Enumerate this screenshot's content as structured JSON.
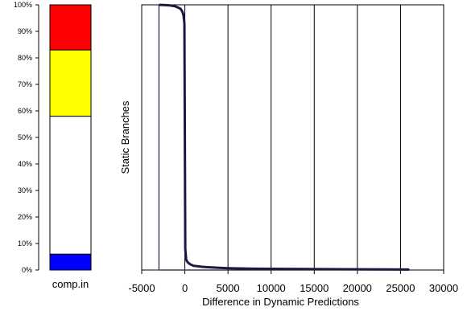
{
  "chart_data": [
    {
      "type": "bar",
      "stacked": true,
      "categories": [
        "comp.in"
      ],
      "series": [
        {
          "color": "#0000ff",
          "values": [
            6
          ]
        },
        {
          "color": "#ffffff",
          "values": [
            52
          ]
        },
        {
          "color": "#ffff00",
          "values": [
            25
          ]
        },
        {
          "color": "#ff0000",
          "values": [
            17
          ]
        }
      ],
      "ylim": [
        0,
        100
      ],
      "yticks": [
        "0%",
        "10%",
        "20%",
        "30%",
        "40%",
        "50%",
        "60%",
        "70%",
        "80%",
        "90%",
        "100%"
      ]
    },
    {
      "type": "area",
      "ylabel": "Static Branches",
      "xlabel": "Difference in Dynamic Predictions",
      "xlim": [
        -5000,
        30000
      ],
      "xticks": [
        -5000,
        0,
        5000,
        10000,
        15000,
        20000,
        25000,
        30000
      ],
      "grid": {
        "vertical": true,
        "horizontal": false
      },
      "fill_color": "#1a1a40",
      "x": [
        -3000,
        -1800,
        -1200,
        -800,
        -500,
        -300,
        -150,
        -50,
        0,
        50,
        150,
        300,
        600,
        1000,
        2000,
        3500,
        5000,
        8000,
        12000,
        18000,
        26000
      ],
      "y": [
        100,
        99.8,
        99.5,
        99,
        98.5,
        97.5,
        96,
        93,
        50,
        8,
        4,
        3,
        2.2,
        1.6,
        1.2,
        0.9,
        0.7,
        0.5,
        0.4,
        0.3,
        0.2
      ],
      "ylim": [
        0,
        100
      ]
    }
  ]
}
